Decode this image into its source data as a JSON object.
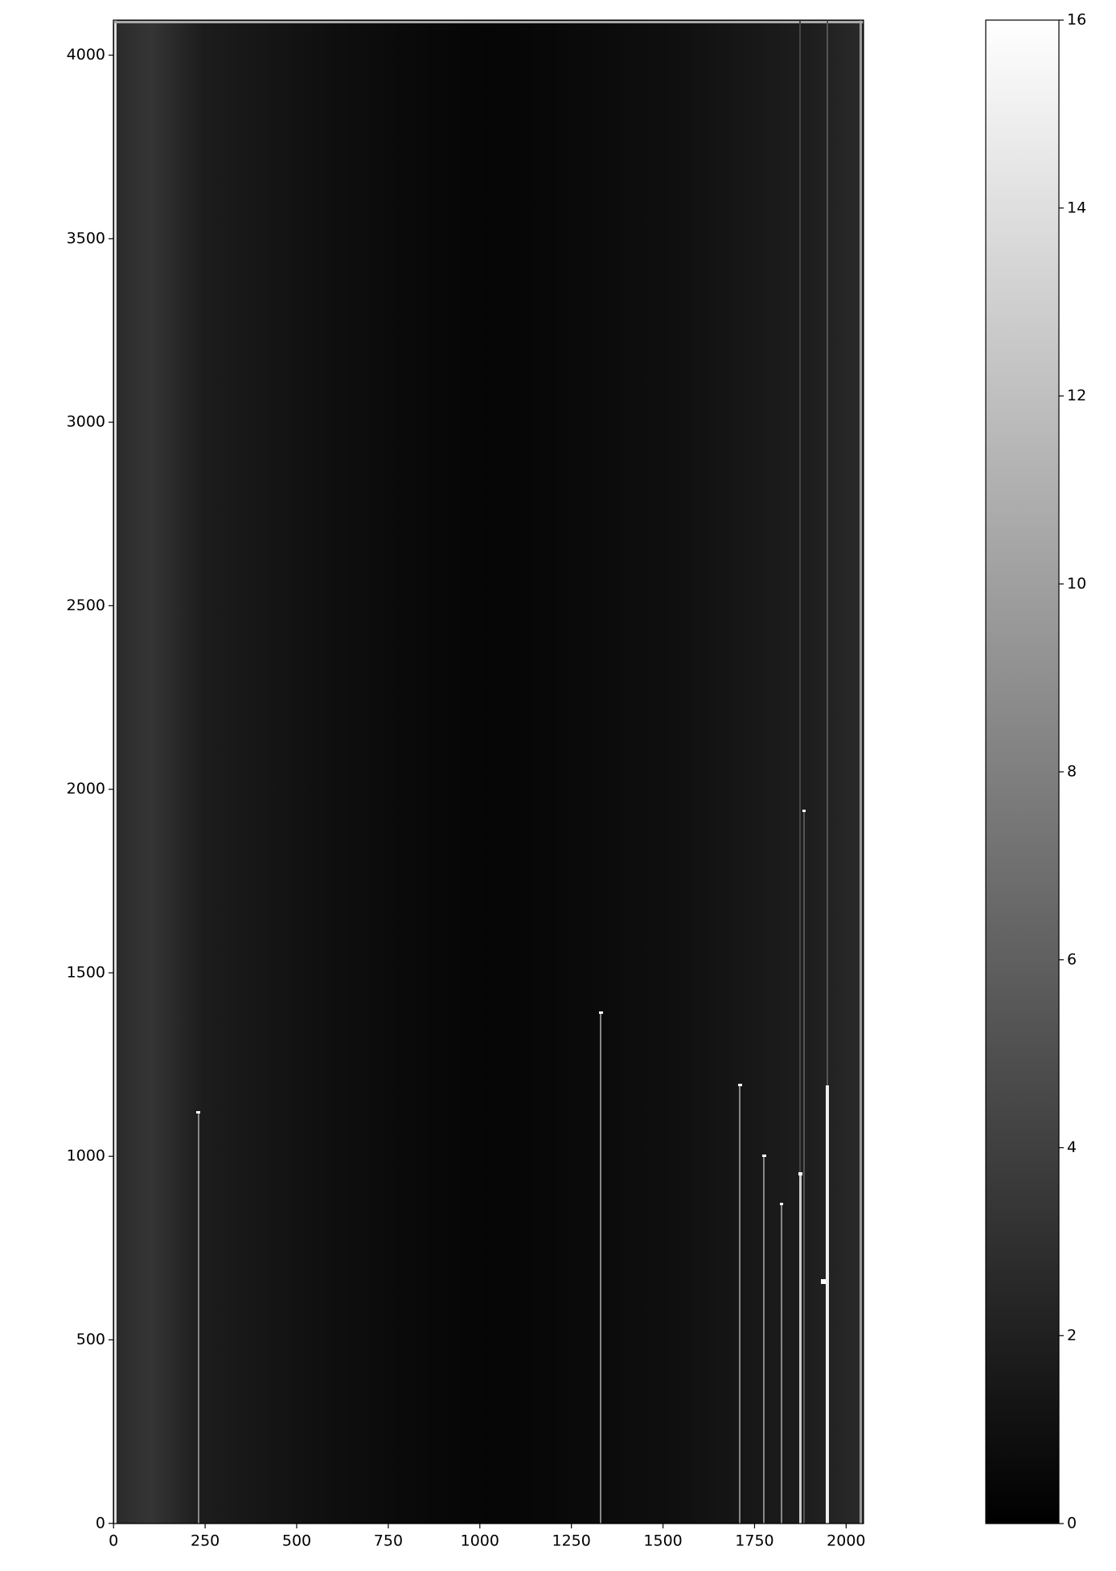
{
  "chart_data": {
    "type": "image",
    "xlim": [
      -0.5,
      2047.5
    ],
    "ylim": [
      -0.5,
      4095.5
    ],
    "xticks": [
      0,
      250,
      500,
      750,
      1000,
      1250,
      1500,
      1750,
      2000
    ],
    "yticks": [
      0,
      500,
      1000,
      1500,
      2000,
      2500,
      3000,
      3500,
      4000
    ],
    "colorbar": {
      "lim": [
        0,
        16
      ],
      "ticks": [
        0,
        2,
        4,
        6,
        8,
        10,
        12,
        14,
        16
      ]
    }
  }
}
